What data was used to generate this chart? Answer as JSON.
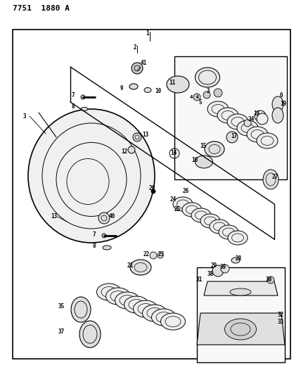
{
  "title": "7751  1880 A",
  "bg_color": "#ffffff",
  "border_color": "#000000",
  "line_color": "#000000",
  "text_color": "#000000",
  "fig_width": 4.28,
  "fig_height": 5.33,
  "dpi": 100
}
